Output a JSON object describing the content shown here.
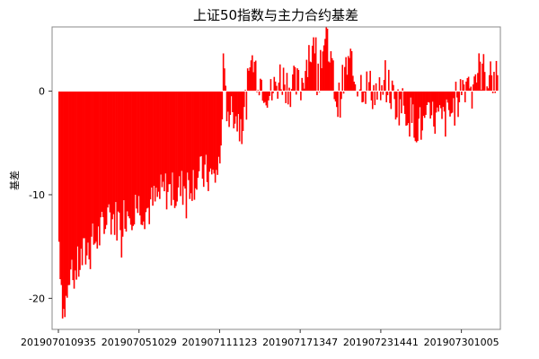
{
  "chart_data": {
    "type": "bar",
    "title": "上证50指数与主力合约基差",
    "xlabel": "",
    "ylabel": "基差",
    "ylim": [
      -23,
      6.2
    ],
    "yticks": [
      0,
      -10,
      -20
    ],
    "xticks": [
      "201907010935",
      "201907051029",
      "201907111123",
      "201907171347",
      "201907231441",
      "201907301005"
    ],
    "series": [
      {
        "color": "#ff0000",
        "anchors": [
          [
            "201907010935",
            -14.5
          ],
          [
            "201907011000",
            -18.0
          ],
          [
            "201907011030",
            -21.5
          ],
          [
            "201907011100",
            -20.5
          ],
          [
            "201907011330",
            -18.5
          ],
          [
            "201907021000",
            -16.5
          ],
          [
            "201907021330",
            -15.0
          ],
          [
            "201907031000",
            -14.0
          ],
          [
            "201907031330",
            -12.0
          ],
          [
            "201907041000",
            -12.5
          ],
          [
            "201907041330",
            -11.5
          ],
          [
            "201907051029",
            -11.0
          ],
          [
            "201907051330",
            -11.5
          ],
          [
            "201907081000",
            -10.5
          ],
          [
            "201907081330",
            -9.5
          ],
          [
            "201907091000",
            -10.0
          ],
          [
            "201907091330",
            -9.0
          ],
          [
            "201907101000",
            -8.5
          ],
          [
            "201907101330",
            -8.0
          ],
          [
            "201907111000",
            -8.5
          ],
          [
            "201907111123",
            -7.0
          ],
          [
            "201907111330",
            2.0
          ],
          [
            "201907111400",
            -1.0
          ],
          [
            "201907121000",
            -2.0
          ],
          [
            "201907121330",
            -3.5
          ],
          [
            "201907151000",
            3.0
          ],
          [
            "201907151330",
            1.0
          ],
          [
            "201907161000",
            -0.5
          ],
          [
            "201907161330",
            1.5
          ],
          [
            "201907171000",
            0.5
          ],
          [
            "201907171347",
            0.5
          ],
          [
            "201907181000",
            4.0
          ],
          [
            "201907181330",
            3.5
          ],
          [
            "201907191000",
            4.5
          ],
          [
            "201907191330",
            -1.5
          ],
          [
            "201907221000",
            2.5
          ],
          [
            "201907221330",
            1.0
          ],
          [
            "201907231000",
            0.5
          ],
          [
            "201907231441",
            -0.5
          ],
          [
            "201907241000",
            1.0
          ],
          [
            "201907241330",
            -1.0
          ],
          [
            "201907251000",
            -1.5
          ],
          [
            "201907251330",
            -3.0
          ],
          [
            "201907261000",
            -3.5
          ],
          [
            "201907261330",
            -2.5
          ],
          [
            "201907291000",
            -3.0
          ],
          [
            "201907291330",
            -2.0
          ],
          [
            "201907301005",
            0.5
          ],
          [
            "201907301330",
            1.5
          ],
          [
            "201907311000",
            2.0
          ],
          [
            "201907311500",
            1.0
          ]
        ]
      }
    ]
  }
}
